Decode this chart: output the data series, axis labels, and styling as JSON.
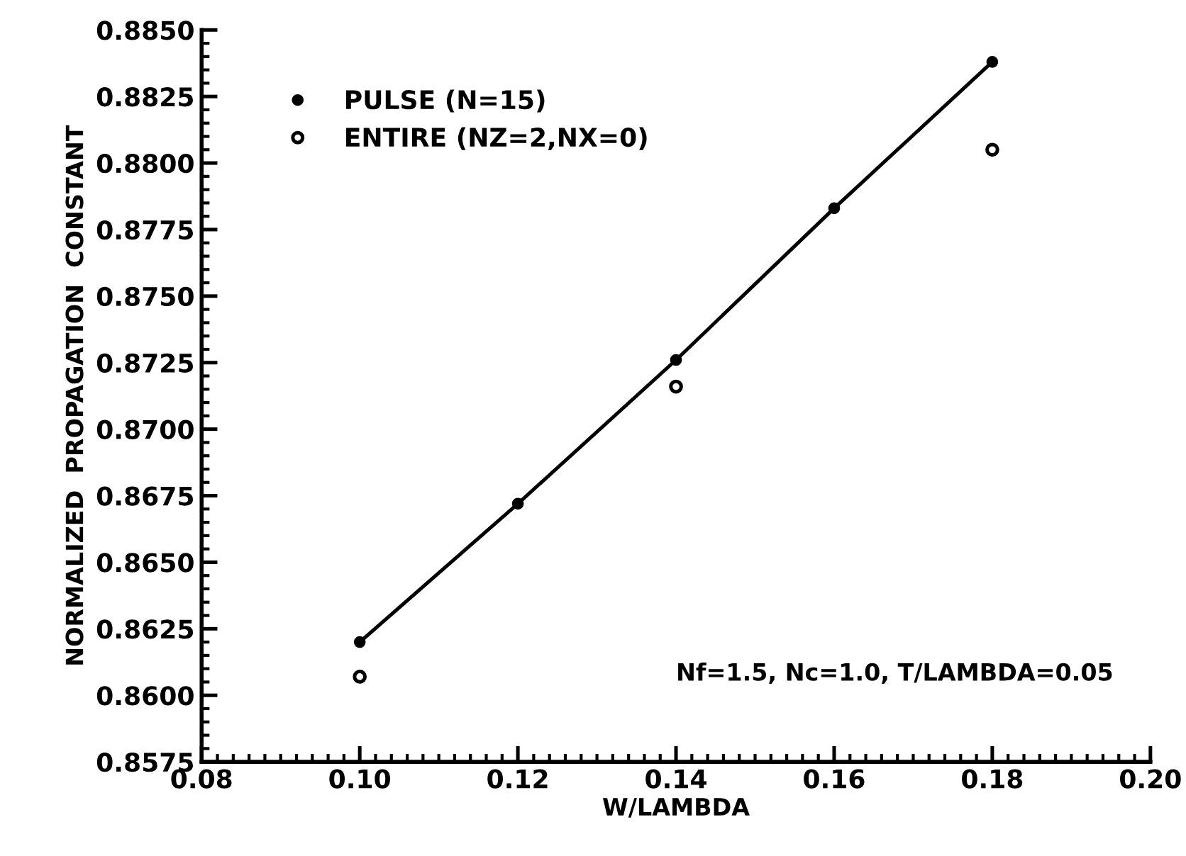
{
  "chart_data": {
    "type": "scatter",
    "xlabel": "W/LAMBDA",
    "ylabel": "NORMALIZED  PROPAGATION  CONSTANT",
    "x": [
      0.1,
      0.12,
      0.14,
      0.16,
      0.18
    ],
    "series": [
      {
        "name": "PULSE (N=15)",
        "type": "line",
        "color": "#000000",
        "marker": "circle",
        "line_style": "solid",
        "values": [
          0.862,
          0.8672,
          0.8726,
          0.8783,
          0.8838
        ]
      },
      {
        "name": "ENTIRE (NZ=2,NX=0)",
        "color": "#000000",
        "marker": "circle",
        "x": [
          0.1,
          0.14,
          0.18
        ],
        "values": [
          0.8607,
          0.8716,
          0.8805
        ]
      }
    ],
    "xlim": [
      0.08,
      0.2
    ],
    "xticks": [
      {
        "value": 0.08,
        "label": "0.08"
      },
      {
        "value": 0.1,
        "label": "0.10"
      },
      {
        "value": 0.12,
        "label": "0.12"
      },
      {
        "value": 0.14,
        "label": "0.14"
      },
      {
        "value": 0.16,
        "label": "0.16"
      },
      {
        "value": 0.18,
        "label": "0.18"
      },
      {
        "value": 0.2,
        "label": "0.20"
      }
    ],
    "ylim": [
      0.8575,
      0.885
    ],
    "yticks": [
      {
        "value": 0.8575,
        "label": "0.8575"
      },
      {
        "value": 0.86,
        "label": "0.8600"
      },
      {
        "value": 0.8625,
        "label": "0.8625"
      },
      {
        "value": 0.865,
        "label": "0.8650"
      },
      {
        "value": 0.8675,
        "label": "0.8675"
      },
      {
        "value": 0.87,
        "label": "0.8700"
      },
      {
        "value": 0.8725,
        "label": "0.8725"
      },
      {
        "value": 0.875,
        "label": "0.8750"
      },
      {
        "value": 0.8775,
        "label": "0.8775"
      },
      {
        "value": 0.88,
        "label": "0.8800"
      },
      {
        "value": 0.8825,
        "label": "0.8825"
      },
      {
        "value": 0.885,
        "label": "0.8850"
      }
    ],
    "annotations": [
      "Nf=1.5, Nc=1.0, T/LAMBDA=0.05"
    ],
    "legend": "top left",
    "grid": false
  }
}
